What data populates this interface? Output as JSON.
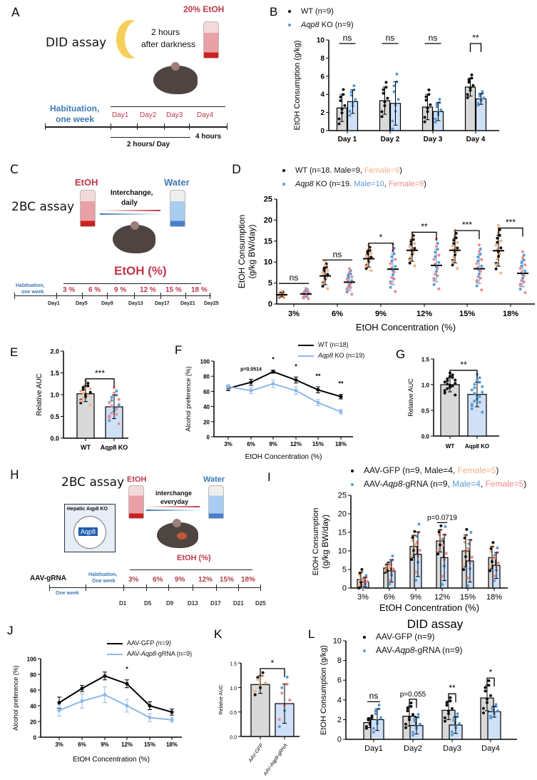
{
  "panels": {
    "A": {
      "label": "A",
      "assay": "DID assay",
      "moon_text_1": "2 hours",
      "moon_text_2": "after darkness",
      "bottle": "20% EtOH",
      "habituation_1": "Habituation,",
      "habituation_2": "one week",
      "days": [
        "Day1",
        "Day2",
        "Day3",
        "Day4"
      ],
      "four_hours": "4 hours",
      "two_hours_day": "2 hours/ Day"
    },
    "C": {
      "label": "C",
      "assay": "2BC assay",
      "etoh": "EtOH",
      "water": "Water",
      "interchange_1": "Interchange,",
      "interchange_2": "daily",
      "etoh_pct": "EtOH (%)",
      "habituation_1": "Habituation,",
      "habituation_2": "one week",
      "concentrations": [
        "3 %",
        "6 %",
        "9 %",
        "12 %",
        "15 %",
        "18 %"
      ],
      "days": [
        "Day1",
        "Day5",
        "Day9",
        "Day13",
        "Day17",
        "Day21",
        "Day25"
      ]
    },
    "D": {
      "label": "D"
    },
    "H": {
      "label": "H",
      "assay": "2BC assay",
      "etoh": "EtOH",
      "water": "Water",
      "interchange_1": "interchange",
      "interchange_2": "everyday",
      "box_title": "Hepatic Aqp8 KO",
      "gene": "Aqp8",
      "etoh_pct": "EtOH  (%)",
      "aav": "AAV-gRNA",
      "one_week": "One week",
      "habituation_1": "Habituation,",
      "habituation_2": "One week",
      "concentrations": [
        "3%",
        "6%",
        "9%",
        "12%",
        "15%",
        "18%"
      ],
      "days": [
        "D1",
        "D5",
        "D9",
        "D13",
        "D17",
        "D21",
        "D25"
      ]
    }
  },
  "colors": {
    "wt_bar": "#d9d9d9",
    "ko_bar": "#cfe0f7",
    "wt_point": "#111111",
    "ko_point": "#5b9bd5",
    "wt_female": "#f4b183",
    "ko_female": "#f08a8a",
    "ko_line": "#8db8e8"
  },
  "chart_data": [
    {
      "id": "B",
      "label": "B",
      "type": "bar",
      "ylabel": "EtOH Consumption (g/kg)",
      "xlabel": "",
      "ylim": [
        0,
        10
      ],
      "yticks": [
        "0",
        "2",
        "4",
        "6",
        "8",
        "10"
      ],
      "categories": [
        "Day 1",
        "Day 2",
        "Day 3",
        "Day 4"
      ],
      "legend": [
        [
          {
            "t": "WT (n=9)"
          }
        ],
        [
          {
            "t": "Aqp8",
            "i": true
          },
          {
            "t": " KO (n=9)"
          }
        ]
      ],
      "series": [
        {
          "name": "WT (n=9)",
          "mean": [
            2.5,
            3.3,
            2.6,
            4.8
          ],
          "sd": [
            1.5,
            1.5,
            1.4,
            1.0
          ],
          "n": 9
        },
        {
          "name": "Aqp8 KO (n=9)",
          "mean": [
            3.2,
            3.0,
            2.1,
            3.5
          ],
          "sd": [
            1.3,
            2.4,
            1.0,
            0.6
          ],
          "n": 9
        }
      ],
      "significance": [
        "ns",
        "ns",
        "ns",
        "**"
      ]
    },
    {
      "id": "D",
      "label": "",
      "type": "scatter",
      "ylabel": "EtOH Consumption",
      "ylabel2": "(g/kg BW/day)",
      "xlabel": "EtOH Concentration (%)",
      "ylim": [
        0,
        25
      ],
      "yticks": [
        "0",
        "5",
        "10",
        "15",
        "20",
        "25"
      ],
      "categories": [
        "3%",
        "6%",
        "9%",
        "12%",
        "15%",
        "18%"
      ],
      "legend": [
        [
          {
            "t": "WT (n=18. Male=9, "
          },
          {
            "t": "Female=9",
            "c": "#f4b183"
          },
          {
            "t": ")"
          }
        ],
        [
          {
            "t": "Aqp8",
            "i": true
          },
          {
            "t": " KO (n=19. "
          },
          {
            "t": "Male=10",
            "c": "#5b9bd5"
          },
          {
            "t": ", "
          },
          {
            "t": "Female=9",
            "c": "#f08a8a"
          },
          {
            "t": ")"
          }
        ]
      ],
      "series": [
        {
          "name": "WT",
          "mean": [
            2.2,
            6.7,
            10.8,
            12.8,
            12.8,
            12.7
          ],
          "sd": [
            0.5,
            2.1,
            2.0,
            2.6,
            3.0,
            3.7
          ],
          "n": 18
        },
        {
          "name": "Aqp8 KO",
          "mean": [
            2.4,
            5.2,
            8.3,
            9.2,
            8.4,
            7.3
          ],
          "sd": [
            0.8,
            2.0,
            3.7,
            3.9,
            3.5,
            3.2
          ],
          "n": 19
        }
      ],
      "significance": [
        "ns",
        "ns",
        "*",
        "**",
        "***",
        "***"
      ]
    },
    {
      "id": "E",
      "label": "E",
      "type": "bar",
      "ylabel": "Relative AUC",
      "xlabel": "",
      "ylim": [
        0,
        2
      ],
      "yticks": [
        "0.0",
        "0.5",
        "1.0",
        "1.5",
        "2.0"
      ],
      "categories": [
        "WT",
        "Aqp8 KO"
      ],
      "series": [
        {
          "name": "WT",
          "mean": [
            1.02
          ],
          "sd": [
            0.18
          ],
          "n": 18
        },
        {
          "name": "Aqp8 KO",
          "mean": [
            0.72
          ],
          "sd": [
            0.27
          ],
          "n": 19
        }
      ],
      "significance": [
        "***"
      ]
    },
    {
      "id": "F",
      "label": "F",
      "type": "line",
      "ylabel": "Alcohol preference (%)",
      "xlabel": "EtOH Concentration (%)",
      "ylim": [
        0,
        100
      ],
      "yticks": [
        "0",
        "20",
        "40",
        "60",
        "80",
        "100"
      ],
      "categories": [
        "3%",
        "6%",
        "9%",
        "12%",
        "15%",
        "18%"
      ],
      "legend": [
        [
          {
            "t": "WT (n=18)"
          }
        ],
        [
          {
            "t": "Aqp8",
            "i": true
          },
          {
            "t": " KO (n=19)"
          }
        ]
      ],
      "series": [
        {
          "name": "WT (n=18)",
          "mean": [
            64,
            72,
            86,
            75,
            62,
            53
          ],
          "sd": [
            3,
            4,
            2,
            4,
            4,
            3
          ]
        },
        {
          "name": "Aqp8 KO (n=19)",
          "mean": [
            66,
            61,
            70,
            61,
            45,
            33
          ],
          "sd": [
            3,
            4,
            5,
            5,
            4,
            3
          ]
        }
      ],
      "significance": [
        "",
        "p=0.0514",
        "*",
        "*",
        "**",
        "**"
      ]
    },
    {
      "id": "G",
      "label": "G",
      "type": "bar",
      "ylabel": "Relative AUC",
      "xlabel": "",
      "ylim": [
        0,
        1.5
      ],
      "yticks": [
        "0.0",
        "0.5",
        "1.0",
        "1.5"
      ],
      "categories": [
        "WT",
        "Aqp8 KO"
      ],
      "series": [
        {
          "name": "WT",
          "mean": [
            1.0
          ],
          "sd": [
            0.14
          ],
          "n": 18
        },
        {
          "name": "Aqp8 KO",
          "mean": [
            0.81
          ],
          "sd": [
            0.24
          ],
          "n": 19
        }
      ],
      "significance": [
        "**"
      ]
    },
    {
      "id": "I",
      "label": "I",
      "type": "bar",
      "ylabel": "EtOH Consumption",
      "ylabel2": "(g/kg BW/day)",
      "xlabel": "EtOH Concentration (%)",
      "ylim": [
        0,
        25
      ],
      "yticks": [
        "0",
        "5",
        "10",
        "15",
        "20",
        "25"
      ],
      "categories": [
        "3%",
        "6%",
        "9%",
        "12%",
        "15%",
        "18%"
      ],
      "legend": [
        [
          {
            "t": "AAV-GFP (n=9, Male=4, "
          },
          {
            "t": "Female=5",
            "c": "#f4b183"
          },
          {
            "t": ")"
          }
        ],
        [
          {
            "t": "AAV-"
          },
          {
            "t": "Aqp8",
            "i": true
          },
          {
            "t": "-gRNA  (n=9, "
          },
          {
            "t": "Male=4",
            "c": "#5b9bd5"
          },
          {
            "t": ", "
          },
          {
            "t": "Female=5",
            "c": "#f08a8a"
          },
          {
            "t": ")"
          }
        ]
      ],
      "series": [
        {
          "name": "AAV-GFP",
          "mean": [
            2.3,
            5.4,
            11.2,
            12.7,
            10.0,
            8.2
          ],
          "sd": [
            2.0,
            1.0,
            3.0,
            3.0,
            4.3,
            3.0
          ],
          "n": 9
        },
        {
          "name": "AAV-Aqp8-gRNA",
          "mean": [
            1.6,
            4.6,
            9.1,
            8.2,
            7.3,
            6.1
          ],
          "sd": [
            1.3,
            3.0,
            6.0,
            6.2,
            5.7,
            3.5
          ],
          "n": 9
        }
      ],
      "significance": [
        "",
        "",
        "",
        "p=0.0719",
        "",
        ""
      ]
    },
    {
      "id": "J",
      "label": "J",
      "type": "line",
      "ylabel": "Alcohol preference (%)",
      "xlabel": "EtOH Concentration (%)",
      "ylim": [
        0,
        100
      ],
      "yticks": [
        "0",
        "20",
        "40",
        "60",
        "80",
        "100"
      ],
      "categories": [
        "3%",
        "6%",
        "9%",
        "12%",
        "15%",
        "18%"
      ],
      "legend": [
        [
          {
            "t": "AAV-GFP "
          },
          {
            "t": "(n=9)",
            "i": true
          }
        ],
        [
          {
            "t": "AAV-"
          },
          {
            "t": "Aqp8",
            "i": true
          },
          {
            "t": "-gRNA (n=9)"
          }
        ]
      ],
      "series": [
        {
          "name": "AAV-GFP (n=9)",
          "mean": [
            44,
            62,
            78,
            68,
            40,
            32
          ],
          "sd": [
            7,
            4,
            5,
            5,
            5,
            4
          ]
        },
        {
          "name": "AAV-Aqp8-gRNA (n=9)",
          "mean": [
            34,
            46,
            54,
            40,
            25,
            22
          ],
          "sd": [
            7,
            9,
            10,
            8,
            5,
            3
          ]
        }
      ],
      "significance": [
        "",
        "",
        "",
        "*",
        "",
        ""
      ]
    },
    {
      "id": "K",
      "label": "K",
      "type": "bar",
      "ylabel": "Relative AUC",
      "xlabel": "",
      "ylim": [
        0,
        1.5
      ],
      "yticks": [
        "0.0",
        "0.5",
        "1.0",
        "1.5"
      ],
      "categories": [
        "AAV-GFP",
        "AAV-Aqp8-gRNA"
      ],
      "series": [
        {
          "name": "AAV-GFP",
          "mean": [
            1.06
          ],
          "sd": [
            0.18
          ],
          "n": 9
        },
        {
          "name": "AAV-Aqp8-gRNA",
          "mean": [
            0.67
          ],
          "sd": [
            0.4
          ],
          "n": 9
        }
      ],
      "significance": [
        "*"
      ]
    },
    {
      "id": "L",
      "label": "L",
      "title": "DID assay",
      "type": "bar",
      "ylabel": "EtOH Consumption (g/kg)",
      "xlabel": "",
      "ylim": [
        0,
        10
      ],
      "yticks": [
        "0",
        "2",
        "4",
        "6",
        "8",
        "10"
      ],
      "categories": [
        "Day1",
        "Day2",
        "Day3",
        "Day4"
      ],
      "legend": [
        [
          {
            "t": "AAV-GFP (n=9)"
          }
        ],
        [
          {
            "t": "AAV-"
          },
          {
            "t": "Aqp8",
            "i": true
          },
          {
            "t": "-gRNA (n=9)"
          }
        ]
      ],
      "series": [
        {
          "name": "AAV-GFP (n=9)",
          "mean": [
            1.7,
            2.35,
            2.95,
            4.2
          ],
          "sd": [
            0.5,
            1.0,
            0.95,
            1.3
          ],
          "n": 9
        },
        {
          "name": "AAV-Aqp8-gRNA (n=9)",
          "mean": [
            2.0,
            1.4,
            1.45,
            2.8
          ],
          "sd": [
            1.1,
            0.85,
            0.85,
            0.55
          ],
          "n": 9
        }
      ],
      "significance": [
        "ns",
        "p=0.055",
        "**",
        "*"
      ]
    }
  ]
}
